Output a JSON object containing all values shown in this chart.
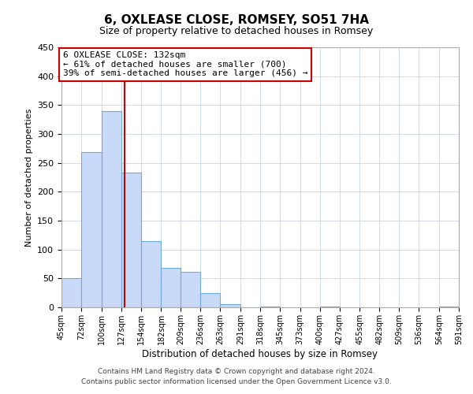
{
  "title": "6, OXLEASE CLOSE, ROMSEY, SO51 7HA",
  "subtitle": "Size of property relative to detached houses in Romsey",
  "xlabel": "Distribution of detached houses by size in Romsey",
  "ylabel": "Number of detached properties",
  "bin_edges": [
    45,
    72,
    100,
    127,
    154,
    182,
    209,
    236,
    263,
    291,
    318,
    345,
    373,
    400,
    427,
    455,
    482,
    509,
    536,
    564,
    591
  ],
  "bin_labels": [
    "45sqm",
    "72sqm",
    "100sqm",
    "127sqm",
    "154sqm",
    "182sqm",
    "209sqm",
    "236sqm",
    "263sqm",
    "291sqm",
    "318sqm",
    "345sqm",
    "373sqm",
    "400sqm",
    "427sqm",
    "455sqm",
    "482sqm",
    "509sqm",
    "536sqm",
    "564sqm",
    "591sqm"
  ],
  "counts": [
    50,
    268,
    340,
    233,
    115,
    68,
    62,
    25,
    6,
    0,
    1,
    0,
    0,
    1,
    0,
    0,
    0,
    0,
    0,
    2
  ],
  "bar_color": "#c9daf8",
  "bar_edge_color": "#6fa8dc",
  "property_line_x": 132,
  "property_line_color": "#cc0000",
  "annotation_title": "6 OXLEASE CLOSE: 132sqm",
  "annotation_line1": "← 61% of detached houses are smaller (700)",
  "annotation_line2": "39% of semi-detached houses are larger (456) →",
  "annotation_box_color": "#ffffff",
  "annotation_box_edge_color": "#cc0000",
  "ylim": [
    0,
    450
  ],
  "yticks": [
    0,
    50,
    100,
    150,
    200,
    250,
    300,
    350,
    400,
    450
  ],
  "footer_line1": "Contains HM Land Registry data © Crown copyright and database right 2024.",
  "footer_line2": "Contains public sector information licensed under the Open Government Licence v3.0.",
  "background_color": "#ffffff",
  "grid_color": "#c8d4e8"
}
